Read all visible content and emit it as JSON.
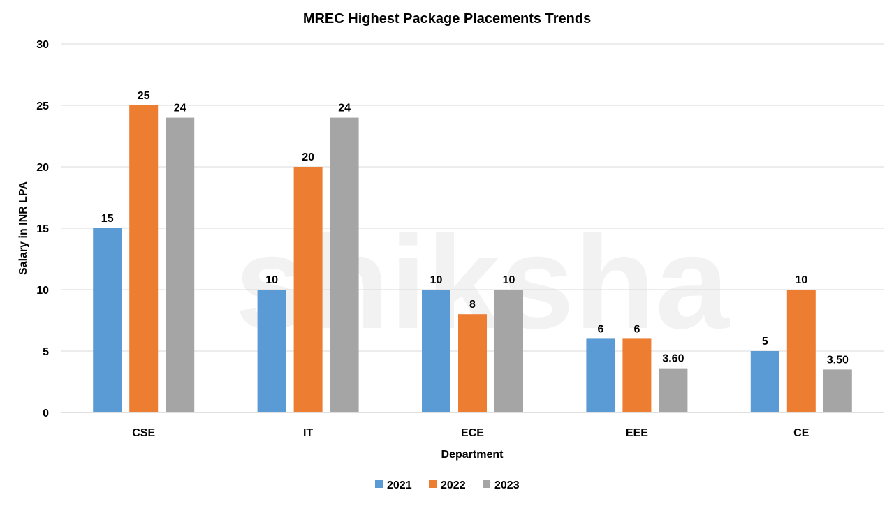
{
  "watermark": "shiksha",
  "chart_data": {
    "type": "bar",
    "title": "MREC Highest Package Placements Trends",
    "xlabel": "Department",
    "ylabel": "Salary in INR LPA",
    "categories": [
      "CSE",
      "IT",
      "ECE",
      "EEE",
      "CE"
    ],
    "series": [
      {
        "name": "2021",
        "color": "#5B9BD5",
        "values": [
          15,
          10,
          10,
          6,
          5
        ],
        "labels": [
          "15",
          "10",
          "10",
          "6",
          "5"
        ]
      },
      {
        "name": "2022",
        "color": "#ED7D31",
        "values": [
          25,
          20,
          8,
          6,
          10
        ],
        "labels": [
          "25",
          "20",
          "8",
          "6",
          "10"
        ]
      },
      {
        "name": "2023",
        "color": "#A5A5A5",
        "values": [
          24,
          24,
          10,
          3.6,
          3.5
        ],
        "labels": [
          "24",
          "24",
          "10",
          "3.60",
          "3.50"
        ]
      }
    ],
    "ylim": [
      0,
      30
    ],
    "yticks": [
      0,
      5,
      10,
      15,
      20,
      25,
      30
    ],
    "grid": true,
    "legend": "bottom"
  }
}
